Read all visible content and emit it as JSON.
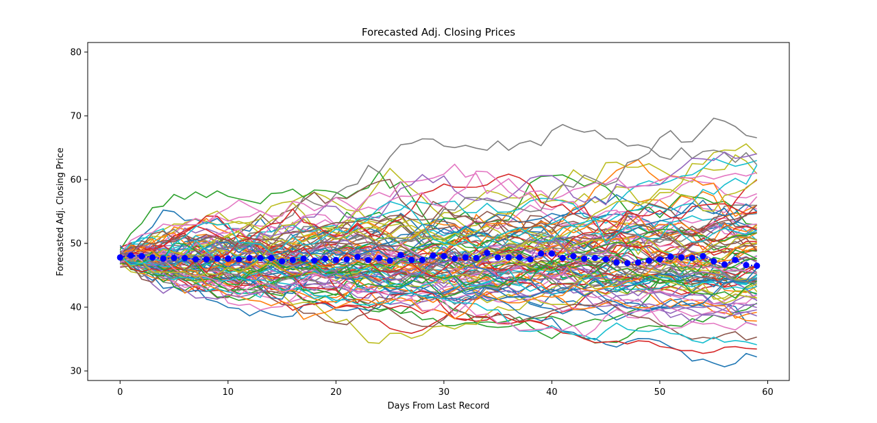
{
  "chart_data": {
    "type": "line",
    "title": "Forecasted Adj. Closing Prices",
    "xlabel": "Days From Last Record",
    "ylabel": "Forecasted Adj. Closing Price",
    "xlim": [
      -3,
      62
    ],
    "ylim": [
      28.5,
      81.5
    ],
    "xticks": [
      0,
      10,
      20,
      30,
      40,
      50,
      60
    ],
    "yticks": [
      30,
      40,
      50,
      60,
      70,
      80
    ],
    "grid": false,
    "legend": "none",
    "simulation": {
      "paths": 100,
      "days": 60,
      "start_value": 47.8,
      "daily_volatility": 0.021,
      "seed": 7,
      "colors": [
        "#1f77b4",
        "#ff7f0e",
        "#2ca02c",
        "#d62728",
        "#9467bd",
        "#8c564b",
        "#e377c2",
        "#7f7f7f",
        "#bcbd22",
        "#17becf"
      ]
    },
    "mean_series": {
      "color": "#0000ff",
      "x": [
        0,
        1,
        2,
        3,
        4,
        5,
        6,
        7,
        8,
        9,
        10,
        11,
        12,
        13,
        14,
        15,
        16,
        17,
        18,
        19,
        20,
        21,
        22,
        23,
        24,
        25,
        26,
        27,
        28,
        29,
        30,
        31,
        32,
        33,
        34,
        35,
        36,
        37,
        38,
        39,
        40,
        41,
        42,
        43,
        44,
        45,
        46,
        47,
        48,
        49,
        50,
        51,
        52,
        53,
        54,
        55,
        56,
        57,
        58,
        59
      ],
      "values": [
        47.8,
        48.1,
        48.0,
        47.8,
        47.6,
        47.7,
        47.7,
        47.5,
        47.5,
        47.6,
        47.6,
        47.5,
        47.7,
        47.7,
        47.7,
        47.2,
        47.4,
        47.6,
        47.3,
        47.6,
        47.4,
        47.5,
        47.9,
        47.4,
        47.7,
        47.3,
        48.2,
        47.4,
        47.4,
        48.1,
        48.0,
        47.6,
        47.8,
        47.7,
        48.5,
        47.8,
        47.8,
        47.8,
        47.5,
        48.4,
        48.4,
        47.7,
        48.0,
        47.6,
        47.7,
        47.5,
        47.0,
        46.9,
        47.0,
        47.3,
        47.5,
        47.9,
        47.8,
        47.7,
        48.0,
        47.2,
        46.7,
        47.4,
        46.6,
        46.5
      ]
    }
  }
}
